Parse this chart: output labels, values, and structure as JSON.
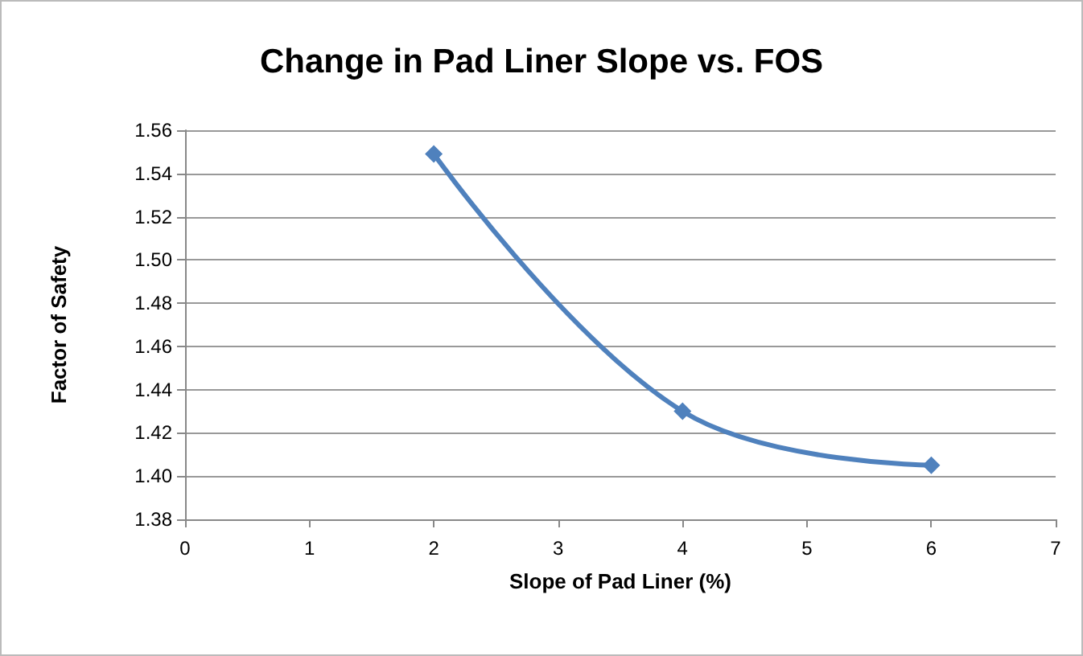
{
  "chart_data": {
    "type": "line",
    "title": "Change in Pad Liner Slope vs. FOS",
    "xlabel": "Slope of Pad Liner (%)",
    "ylabel": "Factor of Safety",
    "x": [
      2,
      4,
      6
    ],
    "series": [
      {
        "color": "#4f81bd",
        "values": [
          1.549,
          1.43,
          1.405
        ]
      }
    ],
    "xlim": [
      0,
      7
    ],
    "xticks": [
      0,
      1,
      2,
      3,
      4,
      5,
      6,
      7
    ],
    "ylim": [
      1.38,
      1.56
    ],
    "yticks": [
      {
        "value": 1.38,
        "label": "1.38"
      },
      {
        "value": 1.4,
        "label": "1.40"
      },
      {
        "value": 1.42,
        "label": "1.42"
      },
      {
        "value": 1.44,
        "label": "1.44"
      },
      {
        "value": 1.46,
        "label": "1.46"
      },
      {
        "value": 1.48,
        "label": "1.48"
      },
      {
        "value": 1.5,
        "label": "1.50"
      },
      {
        "value": 1.52,
        "label": "1.52"
      },
      {
        "value": 1.54,
        "label": "1.54"
      },
      {
        "value": 1.56,
        "label": "1.56"
      }
    ],
    "grid": "y",
    "marker": "diamond",
    "line_style": "solid"
  }
}
